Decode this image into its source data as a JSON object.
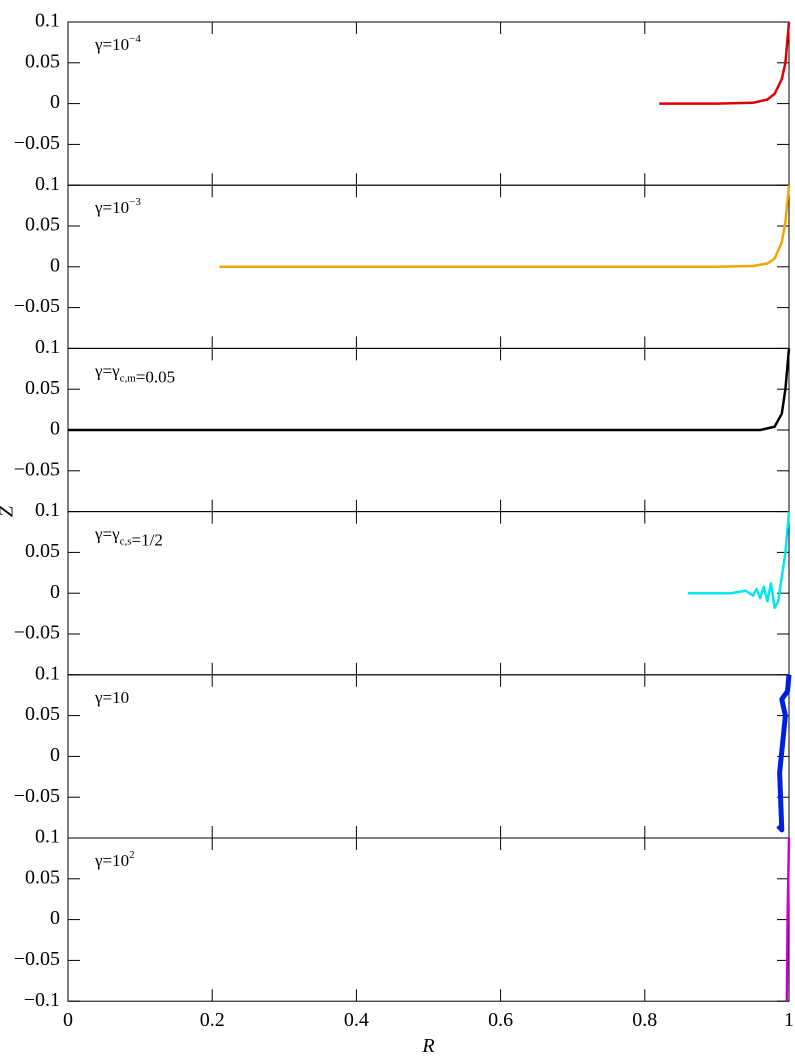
{
  "chart_data": [
    {
      "type": "line",
      "annotation": [
        {
          "text": "γ=10"
        },
        {
          "text": "−4",
          "shift": "sup"
        }
      ],
      "xlim": [
        0,
        1
      ],
      "ylim": [
        -0.1,
        0.1
      ],
      "yticks": [
        0.1,
        0.05,
        0,
        {
          "value": -0.05,
          "label": "−0.05"
        }
      ],
      "series": [
        {
          "color": "#e00000",
          "x": [
            0.82,
            0.9,
            0.95,
            0.97,
            0.98,
            0.99,
            0.995,
            1.0
          ],
          "values": [
            0,
            0,
            0.001,
            0.005,
            0.012,
            0.03,
            0.05,
            0.1
          ]
        }
      ]
    },
    {
      "type": "line",
      "annotation": [
        {
          "text": "γ=10"
        },
        {
          "text": "−3",
          "shift": "sup"
        }
      ],
      "xlim": [
        0,
        1
      ],
      "ylim": [
        -0.1,
        0.1
      ],
      "yticks": [
        0.1,
        0.05,
        0,
        {
          "value": -0.05,
          "label": "−0.05"
        }
      ],
      "series": [
        {
          "color": "#f0a800",
          "x": [
            0.21,
            0.5,
            0.76,
            0.9,
            0.95,
            0.97,
            0.98,
            0.99,
            0.995,
            1.0
          ],
          "values": [
            0,
            0,
            0,
            0,
            0.001,
            0.004,
            0.01,
            0.03,
            0.055,
            0.1
          ]
        }
      ]
    },
    {
      "type": "line",
      "annotation": [
        {
          "text": "γ=γ"
        },
        {
          "text": "c,m",
          "shift": "sub"
        },
        {
          "text": "=0.05"
        }
      ],
      "xlim": [
        0,
        1
      ],
      "ylim": [
        -0.1,
        0.1
      ],
      "yticks": [
        0.1,
        0.05,
        0,
        {
          "value": -0.05,
          "label": "−0.05"
        }
      ],
      "ylabel": "Z",
      "series": [
        {
          "color": "#000000",
          "x": [
            0.0,
            0.5,
            0.96,
            0.98,
            0.99,
            0.995,
            1.0
          ],
          "values": [
            0,
            0,
            0,
            0.004,
            0.02,
            0.05,
            0.1
          ]
        }
      ]
    },
    {
      "type": "line",
      "annotation": [
        {
          "text": "γ=γ"
        },
        {
          "text": "c,s",
          "shift": "sub"
        },
        {
          "text": "=1/2"
        }
      ],
      "xlim": [
        0,
        1
      ],
      "ylim": [
        -0.1,
        0.1
      ],
      "yticks": [
        0.1,
        0.05,
        0,
        {
          "value": -0.05,
          "label": "−0.05"
        }
      ],
      "series": [
        {
          "color": "#00e8f0",
          "x": [
            0.86,
            0.92,
            0.94,
            0.95,
            0.955,
            0.96,
            0.965,
            0.97,
            0.975,
            0.98,
            0.985,
            0.99,
            0.995,
            1.0
          ],
          "values": [
            0,
            0,
            0.003,
            -0.003,
            0.005,
            -0.006,
            0.008,
            -0.01,
            0.012,
            -0.018,
            -0.01,
            0.02,
            0.05,
            0.1
          ]
        }
      ]
    },
    {
      "type": "line",
      "annotation": [
        {
          "text": "γ=10"
        }
      ],
      "xlim": [
        0,
        1
      ],
      "ylim": [
        -0.1,
        0.1
      ],
      "yticks": [
        0.1,
        0.05,
        0,
        {
          "value": -0.05,
          "label": "−0.05"
        }
      ],
      "series": [
        {
          "color": "#0020e0",
          "x": [
            0.985,
            0.99,
            0.987,
            0.995,
            0.99,
            0.998,
            1.0
          ],
          "values": [
            -0.085,
            -0.09,
            -0.02,
            0.05,
            0.07,
            0.08,
            0.1
          ]
        }
      ]
    },
    {
      "type": "line",
      "annotation": [
        {
          "text": "γ=10"
        },
        {
          "text": "2",
          "shift": "sup"
        }
      ],
      "xlim": [
        0,
        1
      ],
      "ylim": [
        -0.1,
        0.1
      ],
      "yticks": [
        0.1,
        0.05,
        0,
        {
          "value": -0.05,
          "label": "−0.05"
        },
        {
          "value": -0.1,
          "label": "−0.1"
        }
      ],
      "xticks": [
        0,
        0.2,
        0.4,
        0.6,
        0.8,
        1
      ],
      "xlabel": "R",
      "series": [
        {
          "color": "#d000d0",
          "x": [
            0.997,
            0.998,
            1.0
          ],
          "values": [
            -0.1,
            0,
            0.1
          ]
        }
      ]
    }
  ]
}
